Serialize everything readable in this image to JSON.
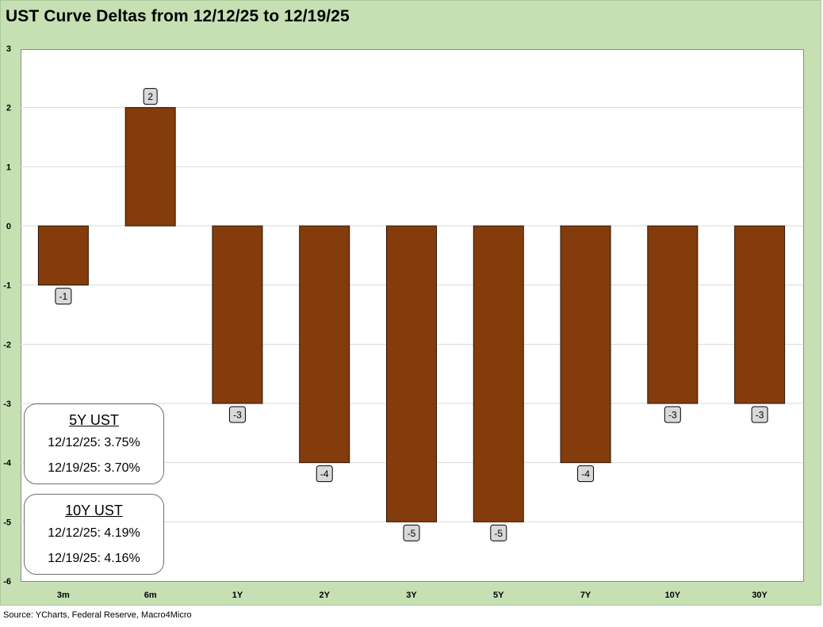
{
  "title": "UST Curve Deltas from 12/12/25 to 12/19/25",
  "source": "Source: YCharts, Federal Reserve, Macro4Micro",
  "colors": {
    "background": "#c6e0b4",
    "bar": "#843c0c",
    "bar_border": "#2b1200",
    "label_fill": "#d9d9d9",
    "gridline": "#d9d9d9"
  },
  "chart_data": {
    "type": "bar",
    "title": "UST Curve Deltas from 12/12/25 to 12/19/25",
    "xlabel": "",
    "ylabel": "",
    "categories": [
      "3m",
      "6m",
      "1Y",
      "2Y",
      "3Y",
      "5Y",
      "7Y",
      "10Y",
      "30Y"
    ],
    "values": [
      -1,
      2,
      -3,
      -4,
      -5,
      -5,
      -4,
      -3,
      -3
    ],
    "data_labels": [
      "-1",
      "2",
      "-3",
      "-4",
      "-5",
      "-5",
      "-4",
      "-3",
      "-3"
    ],
    "ylim": [
      -6,
      3
    ],
    "yticks": [
      "3",
      "2",
      "1",
      "0",
      "-1",
      "-2",
      "-3",
      "-4",
      "-5",
      "-6"
    ],
    "grid": true,
    "legend": "none"
  },
  "boxes": [
    {
      "title": "5Y UST",
      "line1": "12/12/25: 3.75%",
      "line2": "12/19/25: 3.70%"
    },
    {
      "title": "10Y UST",
      "line1": "12/12/25: 4.19%",
      "line2": "12/19/25: 4.16%"
    }
  ]
}
